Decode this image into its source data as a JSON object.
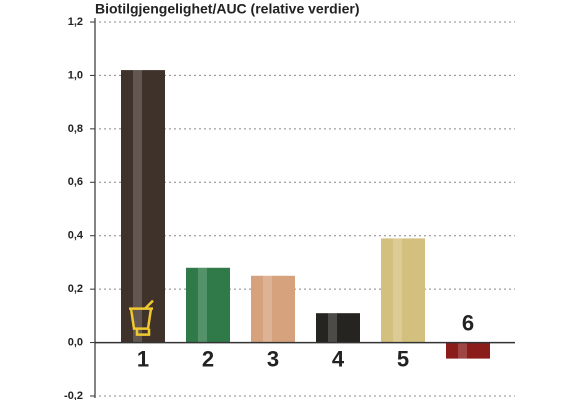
{
  "chart_data": {
    "type": "bar",
    "title": "Biotilgjengelighet/AUC (relative verdier)",
    "categories": [
      "1",
      "2",
      "3",
      "4",
      "5",
      "6"
    ],
    "values": [
      1.02,
      0.28,
      0.25,
      0.11,
      0.39,
      -0.06
    ],
    "colors": [
      "#3f322a",
      "#2f7a48",
      "#d6a27e",
      "#262420",
      "#d3c07e",
      "#8a1d1a"
    ],
    "ylim": [
      -0.2,
      1.2
    ],
    "yticks": [
      {
        "value": -0.2,
        "label": "-0,2"
      },
      {
        "value": 0,
        "label": "0,0"
      },
      {
        "value": 0.2,
        "label": "0,2"
      },
      {
        "value": 0.4,
        "label": "0,4"
      },
      {
        "value": 0.6,
        "label": "0,6"
      },
      {
        "value": 0.8,
        "label": "0,8"
      },
      {
        "value": 1.0,
        "label": "1,0"
      },
      {
        "value": 1.2,
        "label": "1,2"
      }
    ],
    "grid": true
  }
}
